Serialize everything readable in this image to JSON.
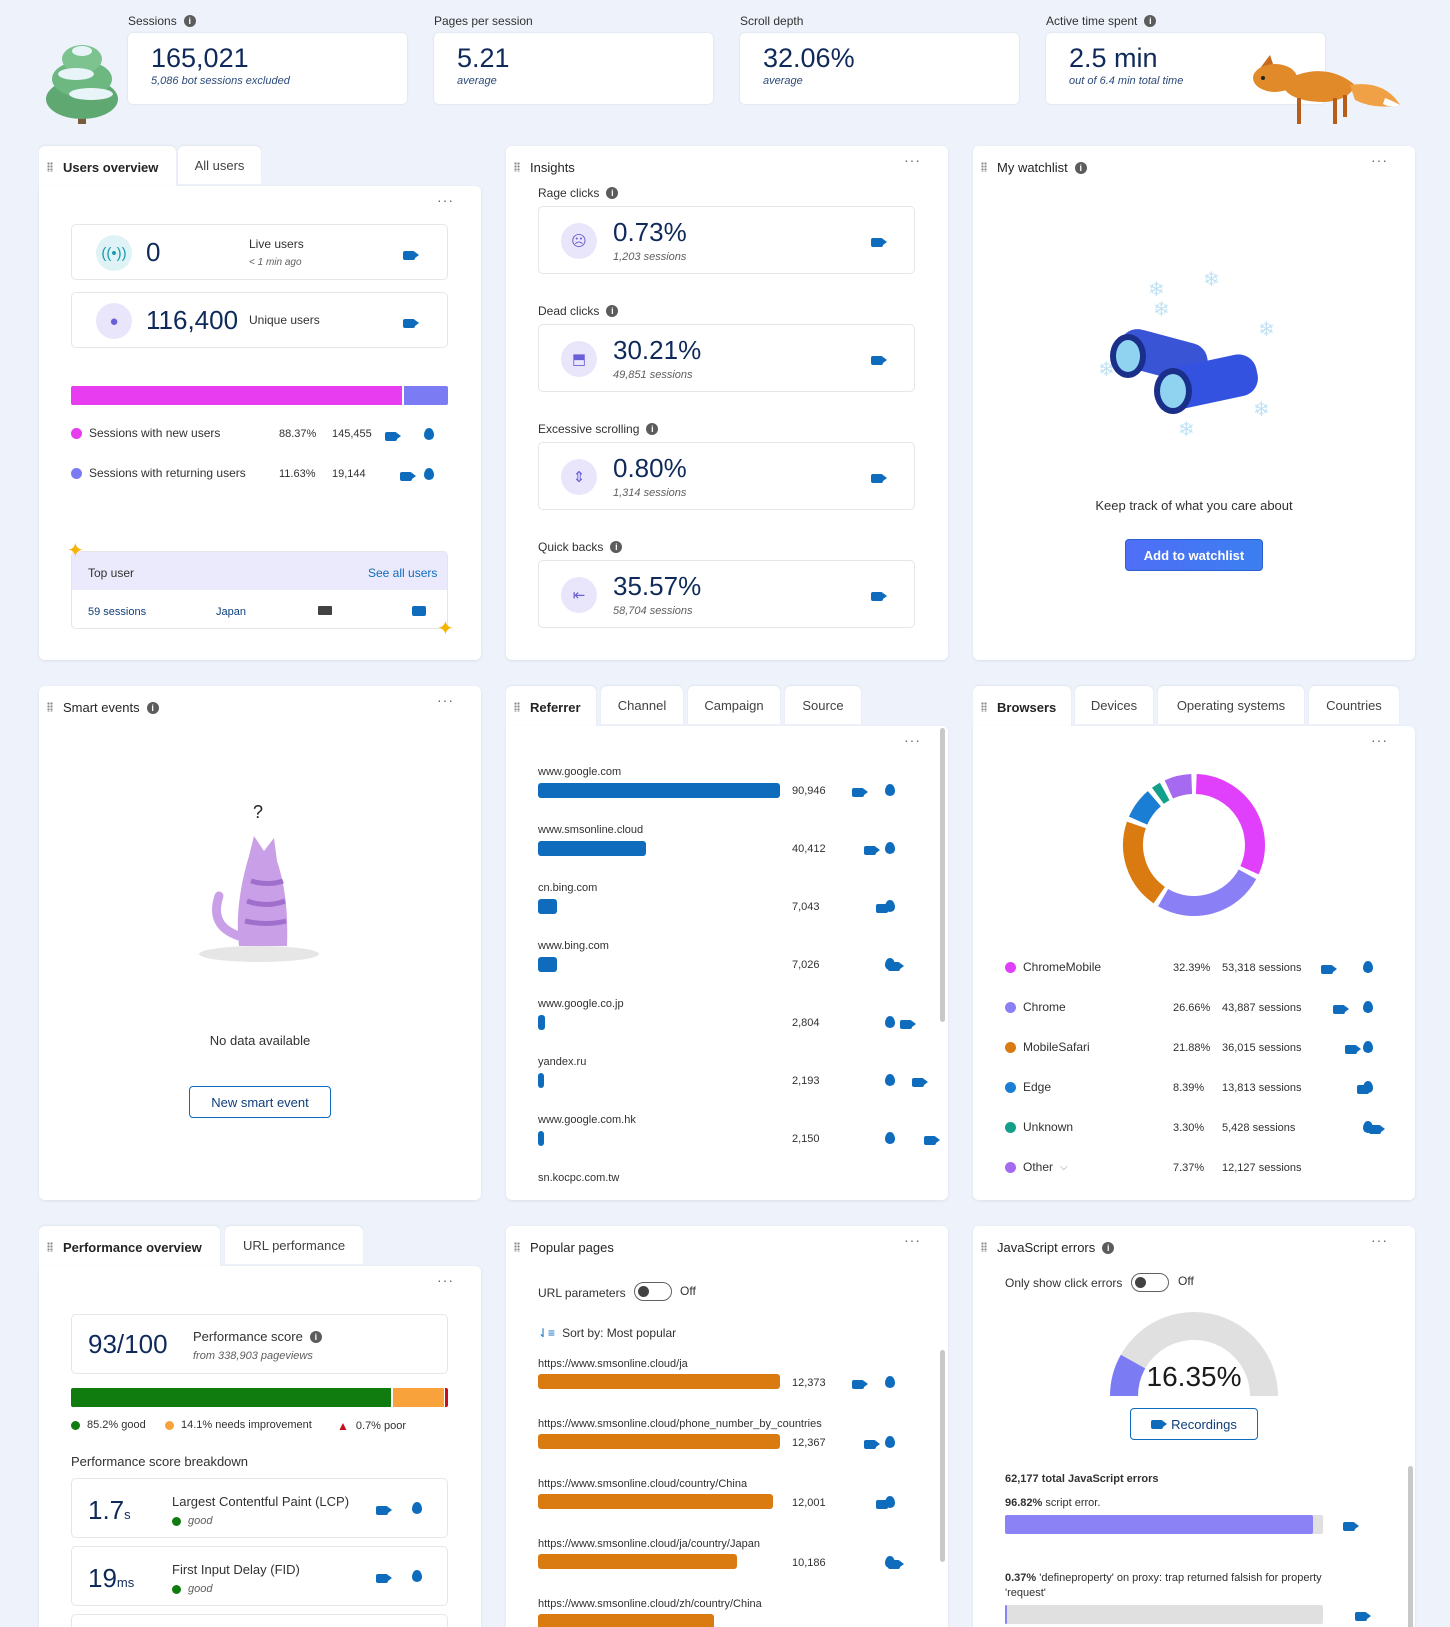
{
  "kpis": [
    {
      "label": "Sessions",
      "value": "165,021",
      "sub": "5,086 bot sessions excluded"
    },
    {
      "label": "Pages per session",
      "value": "5.21",
      "sub": "average"
    },
    {
      "label": "Scroll depth",
      "value": "32.06%",
      "sub": "average"
    },
    {
      "label": "Active time spent",
      "value": "2.5 min",
      "sub": "out of 6.4 min total time"
    }
  ],
  "users_overview": {
    "tabs": [
      "Users overview",
      "All users"
    ],
    "live_value": "0",
    "live_label": "Live users",
    "live_sub": "< 1 min ago",
    "unique_value": "116,400",
    "unique_label": "Unique users",
    "split": [
      {
        "label": "Sessions with new users",
        "pct": "88.37%",
        "count": "145,455",
        "color": "#e83cf0",
        "fraction": 0.8837
      },
      {
        "label": "Sessions with returning users",
        "pct": "11.63%",
        "count": "19,144",
        "color": "#7b7bf4",
        "fraction": 0.1163
      }
    ],
    "top_user_label": "Top user",
    "see_all": "See all users",
    "top_sessions": "59 sessions",
    "top_country": "Japan"
  },
  "insights": {
    "title": "Insights",
    "items": [
      {
        "label": "Rage clicks",
        "value": "0.73%",
        "sub": "1,203 sessions",
        "icon": "angry-face-icon"
      },
      {
        "label": "Dead clicks",
        "value": "30.21%",
        "sub": "49,851 sessions",
        "icon": "cursor-icon"
      },
      {
        "label": "Excessive scrolling",
        "value": "0.80%",
        "sub": "1,314 sessions",
        "icon": "scroll-icon"
      },
      {
        "label": "Quick backs",
        "value": "35.57%",
        "sub": "58,704 sessions",
        "icon": "back-icon"
      }
    ]
  },
  "watchlist": {
    "title": "My watchlist",
    "message": "Keep track of what you care about",
    "button": "Add to watchlist"
  },
  "smart_events": {
    "title": "Smart events",
    "question": "?",
    "message": "No data available",
    "button": "New smart event"
  },
  "referrer": {
    "tabs": [
      "Referrer",
      "Channel",
      "Campaign",
      "Source"
    ],
    "rows": [
      {
        "name": "www.google.com",
        "value": "90,946",
        "n": 90946
      },
      {
        "name": "www.smsonline.cloud",
        "value": "40,412",
        "n": 40412
      },
      {
        "name": "cn.bing.com",
        "value": "7,043",
        "n": 7043
      },
      {
        "name": "www.bing.com",
        "value": "7,026",
        "n": 7026
      },
      {
        "name": "www.google.co.jp",
        "value": "2,804",
        "n": 2804
      },
      {
        "name": "yandex.ru",
        "value": "2,193",
        "n": 2193
      },
      {
        "name": "www.google.com.hk",
        "value": "2,150",
        "n": 2150
      },
      {
        "name": "sn.kocpc.com.tw",
        "value": "",
        "n": 0
      }
    ]
  },
  "browsers": {
    "tabs": [
      "Browsers",
      "Devices",
      "Operating systems",
      "Countries"
    ],
    "rows": [
      {
        "name": "ChromeMobile",
        "pct": "32.39%",
        "sessions": "53,318 sessions",
        "color": "#e040fb",
        "n": 32.39
      },
      {
        "name": "Chrome",
        "pct": "26.66%",
        "sessions": "43,887 sessions",
        "color": "#8b7ff5",
        "n": 26.66
      },
      {
        "name": "MobileSafari",
        "pct": "21.88%",
        "sessions": "36,015 sessions",
        "color": "#da7b11",
        "n": 21.88
      },
      {
        "name": "Edge",
        "pct": "8.39%",
        "sessions": "13,813 sessions",
        "color": "#1a7fd4",
        "n": 8.39
      },
      {
        "name": "Unknown",
        "pct": "3.30%",
        "sessions": "5,428 sessions",
        "color": "#13a08a",
        "n": 3.3
      },
      {
        "name": "Other",
        "pct": "7.37%",
        "sessions": "12,127 sessions",
        "color": "#a56af0",
        "n": 7.37
      }
    ]
  },
  "performance": {
    "tabs": [
      "Performance overview",
      "URL performance"
    ],
    "score": "93/100",
    "score_label": "Performance score",
    "score_sub": "from 338,903 pageviews",
    "good": "85.2% good",
    "needs": "14.1% needs improvement",
    "poor": "0.7% poor",
    "good_frac": 0.852,
    "needs_frac": 0.141,
    "poor_frac": 0.007,
    "breakdown_label": "Performance score breakdown",
    "metrics": [
      {
        "value": "1.7",
        "unit": "s",
        "label": "Largest Contentful Paint (LCP)",
        "status": "good"
      },
      {
        "value": "19",
        "unit": "ms",
        "label": "First Input Delay (FID)",
        "status": "good"
      }
    ]
  },
  "popular_pages": {
    "title": "Popular pages",
    "url_params": "URL parameters",
    "off": "Off",
    "sort": "Sort by: Most popular",
    "rows": [
      {
        "name": "https://www.smsonline.cloud/ja",
        "value": "12,373",
        "n": 12373
      },
      {
        "name": "https://www.smsonline.cloud/phone_number_by_countries",
        "value": "12,367",
        "n": 12367
      },
      {
        "name": "https://www.smsonline.cloud/country/China",
        "value": "12,001",
        "n": 12001
      },
      {
        "name": "https://www.smsonline.cloud/ja/country/Japan",
        "value": "10,186",
        "n": 10186
      },
      {
        "name": "https://www.smsonline.cloud/zh/country/China",
        "value": "",
        "n": 9000
      }
    ]
  },
  "js_errors": {
    "title": "JavaScript errors",
    "only_click": "Only show click errors",
    "off": "Off",
    "rate": "16.35%",
    "rate_frac": 0.1635,
    "recordings": "Recordings",
    "total": "62,177 total JavaScript errors",
    "errors": [
      {
        "pct": "96.82%",
        "text": "script error.",
        "frac": 0.9682
      },
      {
        "pct": "0.37%",
        "text": "'defineproperty' on proxy: trap returned falsish for property 'request'",
        "frac": 0.0037
      }
    ]
  }
}
